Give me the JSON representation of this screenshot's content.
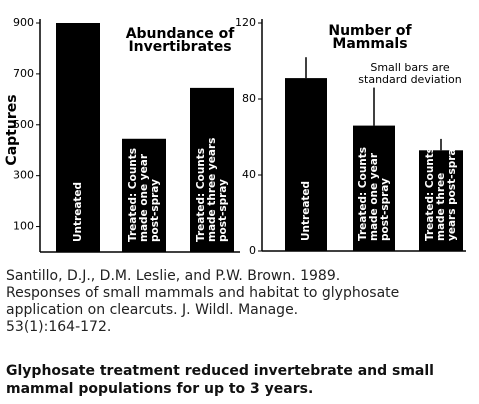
{
  "chart_data": [
    {
      "type": "bar",
      "title": [
        "Abundance of",
        "Invertibrates"
      ],
      "ylabel": "Captures",
      "categories": [
        [
          "Untreated"
        ],
        [
          "Treated: Counts",
          "made one year",
          "post-spray"
        ],
        [
          "Treated: Counts",
          "made three years",
          "post-spray"
        ]
      ],
      "values": [
        900,
        445,
        645
      ],
      "color": "#000000",
      "ylim": [
        0,
        900
      ],
      "yticks": [
        100,
        300,
        500,
        700,
        900
      ]
    },
    {
      "type": "bar",
      "title": [
        "Number of",
        "Mammals"
      ],
      "annotation": [
        "Small bars are",
        "standard deviation"
      ],
      "categories": [
        [
          "Untreated"
        ],
        [
          "Treated: Counts",
          "made one year",
          "post-spray"
        ],
        [
          "Treated: Counts",
          "made three",
          "years post-spray"
        ]
      ],
      "values": [
        91,
        66,
        53
      ],
      "errors": [
        11,
        20,
        6
      ],
      "color": "#000000",
      "ylim": [
        0,
        120
      ],
      "yticks": [
        0,
        40,
        80,
        120
      ]
    }
  ],
  "citation": [
    "Santillo, D.J., D.M. Leslie, and P.W. Brown. 1989.",
    "Responses of small mammals and habitat to glyphosate",
    "application on clearcuts. J. Wildl. Manage.",
    "53(1):164-172."
  ],
  "caption": [
    "Glyphosate treatment reduced invertebrate and small",
    "mammal populations for up to 3 years."
  ]
}
